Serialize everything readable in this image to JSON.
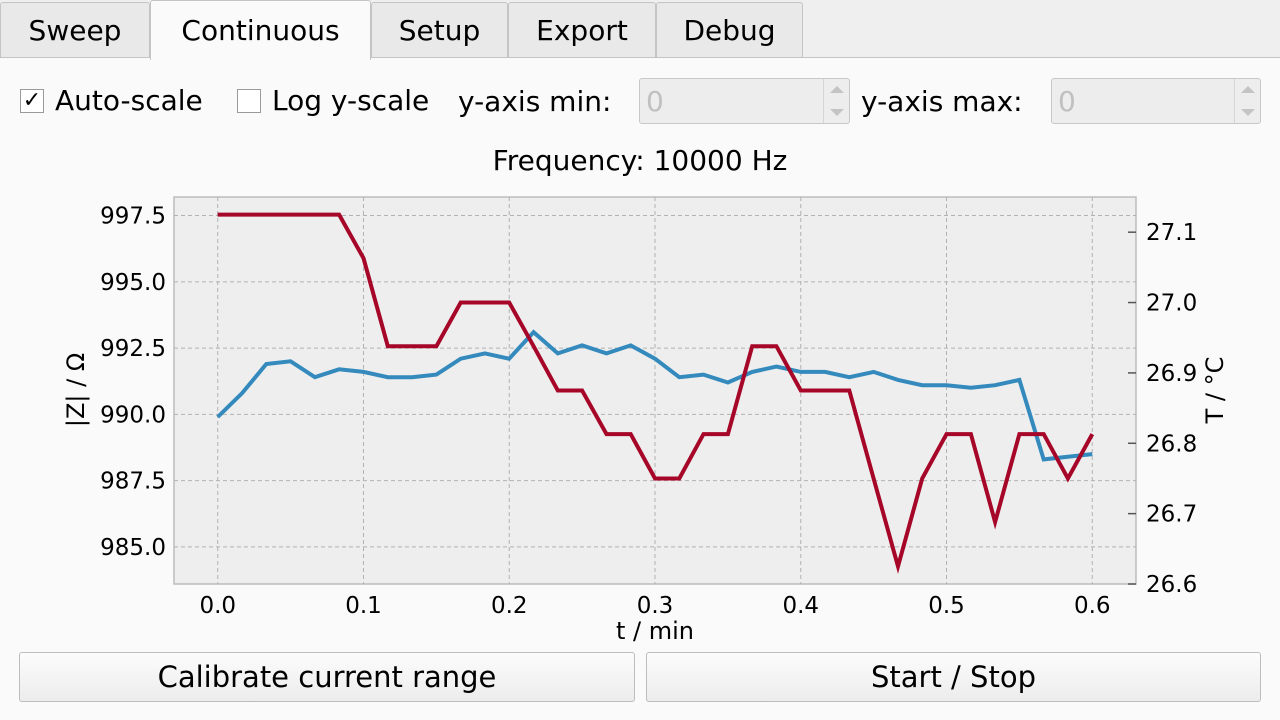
{
  "tabs": [
    {
      "label": "Sweep",
      "active": false
    },
    {
      "label": "Continuous",
      "active": true
    },
    {
      "label": "Setup",
      "active": false
    },
    {
      "label": "Export",
      "active": false
    },
    {
      "label": "Debug",
      "active": false
    }
  ],
  "controls": {
    "autoscale": {
      "label": "Auto-scale",
      "checked": true,
      "mark": "✓"
    },
    "logscale": {
      "label": "Log y-scale",
      "checked": false
    },
    "ymin": {
      "label": "y-axis min:",
      "value": "0"
    },
    "ymax": {
      "label": "y-axis max:",
      "value": "0"
    }
  },
  "buttons": {
    "calibrate": "Calibrate current range",
    "startstop": "Start / Stop"
  },
  "chart_data": {
    "type": "line",
    "title": "Frequency: 10000 Hz",
    "xlabel": "t / min",
    "ylabel": "|Z| / Ω",
    "y2label": "T / °C",
    "xlim": [
      -0.03,
      0.63
    ],
    "ylim": [
      983.6,
      998.2
    ],
    "y2lim": [
      26.6,
      27.15
    ],
    "xticks": [
      "0.0",
      "0.1",
      "0.2",
      "0.3",
      "0.4",
      "0.5",
      "0.6"
    ],
    "yticks": [
      "985.0",
      "987.5",
      "990.0",
      "992.5",
      "995.0",
      "997.5"
    ],
    "y2ticks": [
      "26.6",
      "26.7",
      "26.8",
      "26.9",
      "27.0",
      "27.1"
    ],
    "grid": true,
    "series": [
      {
        "axis": "left",
        "color": "#348abd",
        "x": [
          0.0,
          0.0167,
          0.0333,
          0.05,
          0.0667,
          0.0833,
          0.1,
          0.1167,
          0.1333,
          0.15,
          0.1667,
          0.1833,
          0.2,
          0.2167,
          0.2333,
          0.25,
          0.2667,
          0.2833,
          0.3,
          0.3167,
          0.3333,
          0.35,
          0.3667,
          0.3833,
          0.4,
          0.4167,
          0.4333,
          0.45,
          0.4667,
          0.4833,
          0.5,
          0.5167,
          0.5333,
          0.55,
          0.5667,
          0.5833,
          0.6
        ],
        "y": [
          989.9,
          990.8,
          991.9,
          992.0,
          991.4,
          991.7,
          991.6,
          991.4,
          991.4,
          991.5,
          992.1,
          992.3,
          992.1,
          993.1,
          992.3,
          992.6,
          992.3,
          992.6,
          992.1,
          991.4,
          991.5,
          991.2,
          991.6,
          991.8,
          991.6,
          991.6,
          991.4,
          991.6,
          991.3,
          991.1,
          991.1,
          991.0,
          991.1,
          991.3,
          988.3,
          988.4,
          988.5
        ]
      },
      {
        "axis": "right",
        "color": "#a60628",
        "x": [
          0.0,
          0.0167,
          0.0333,
          0.05,
          0.0667,
          0.0833,
          0.1,
          0.1167,
          0.1333,
          0.15,
          0.1667,
          0.1833,
          0.2,
          0.2167,
          0.2333,
          0.25,
          0.2667,
          0.2833,
          0.3,
          0.3167,
          0.3333,
          0.35,
          0.3667,
          0.3833,
          0.4,
          0.4167,
          0.4333,
          0.45,
          0.4667,
          0.4833,
          0.5,
          0.5167,
          0.5333,
          0.55,
          0.5667,
          0.5833,
          0.6
        ],
        "y": [
          27.125,
          27.125,
          27.125,
          27.125,
          27.125,
          27.125,
          27.063,
          26.938,
          26.938,
          26.938,
          27.0,
          27.0,
          27.0,
          26.938,
          26.875,
          26.875,
          26.813,
          26.813,
          26.75,
          26.75,
          26.813,
          26.813,
          26.938,
          26.938,
          26.875,
          26.875,
          26.875,
          26.75,
          26.625,
          26.75,
          26.813,
          26.813,
          26.688,
          26.813,
          26.813,
          26.75,
          26.813
        ]
      }
    ]
  }
}
